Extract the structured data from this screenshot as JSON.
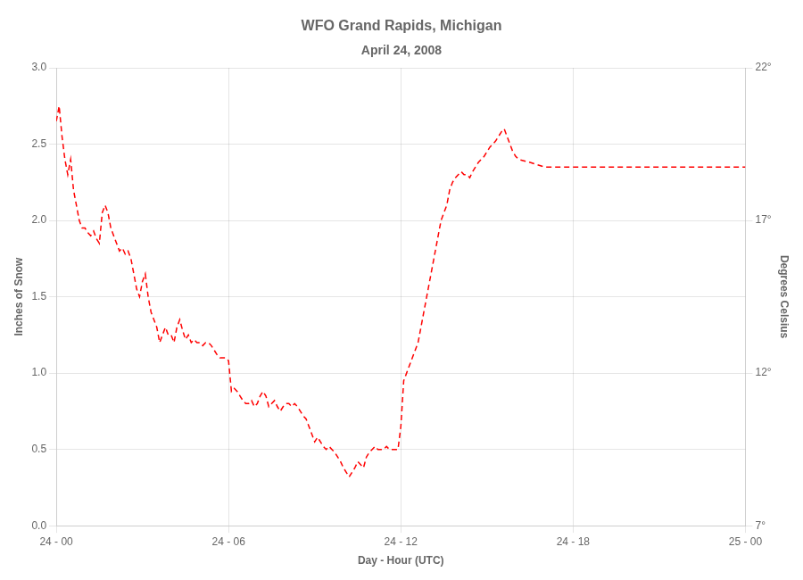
{
  "chart_data": {
    "type": "line",
    "title": "WFO Grand Rapids, Michigan",
    "subtitle": "April 24, 2008",
    "xlabel": "Day - Hour (UTC)",
    "ylabel": "Inches of Snow",
    "y2label": "Degrees Celsius",
    "grid": true,
    "color": "#FF0000",
    "line_style": "dashed",
    "xlim": [
      0,
      24
    ],
    "xticks": [
      {
        "value": 0,
        "label": "24 - 00"
      },
      {
        "value": 6,
        "label": "24 - 06"
      },
      {
        "value": 12,
        "label": "24 - 12"
      },
      {
        "value": 18,
        "label": "24 - 18"
      },
      {
        "value": 24,
        "label": "25 - 00"
      }
    ],
    "ylim": [
      0.0,
      3.0
    ],
    "yticks": [
      {
        "value": 0.0,
        "label": "0.0"
      },
      0.5,
      {
        "value": 1.0,
        "label": "1.0"
      },
      1.5,
      {
        "value": 2.0,
        "label": "2.0"
      },
      2.5,
      {
        "value": 3.0,
        "label": "3.0"
      }
    ],
    "y2lim": [
      7,
      22
    ],
    "y2ticks": [
      {
        "value": 7,
        "label": "7°"
      },
      {
        "value": 12,
        "label": "12°"
      },
      {
        "value": 17,
        "label": "17°"
      },
      {
        "value": 22,
        "label": "22°"
      }
    ],
    "x": [
      0.0,
      0.1,
      0.2,
      0.3,
      0.4,
      0.5,
      0.6,
      0.7,
      0.8,
      0.9,
      1.0,
      1.1,
      1.2,
      1.3,
      1.4,
      1.5,
      1.6,
      1.7,
      1.8,
      1.9,
      2.0,
      2.1,
      2.2,
      2.3,
      2.4,
      2.5,
      2.6,
      2.7,
      2.8,
      2.9,
      3.0,
      3.1,
      3.2,
      3.3,
      3.4,
      3.5,
      3.6,
      3.7,
      3.8,
      3.9,
      4.0,
      4.1,
      4.2,
      4.3,
      4.4,
      4.5,
      4.6,
      4.7,
      4.8,
      4.9,
      5.0,
      5.1,
      5.2,
      5.3,
      5.4,
      5.5,
      5.6,
      5.7,
      5.8,
      5.9,
      6.0,
      6.1,
      6.2,
      6.3,
      6.4,
      6.5,
      6.6,
      6.7,
      6.8,
      6.9,
      7.0,
      7.1,
      7.2,
      7.3,
      7.4,
      7.5,
      7.6,
      7.7,
      7.8,
      7.9,
      8.0,
      8.1,
      8.2,
      8.3,
      8.4,
      8.5,
      8.6,
      8.7,
      8.8,
      8.9,
      9.0,
      9.1,
      9.2,
      9.3,
      9.4,
      9.5,
      9.6,
      9.7,
      9.8,
      9.9,
      10.0,
      10.1,
      10.2,
      10.3,
      10.4,
      10.5,
      10.6,
      10.7,
      10.8,
      10.9,
      11.0,
      11.1,
      11.2,
      11.3,
      11.4,
      11.5,
      11.6,
      11.7,
      11.8,
      11.9,
      12.0,
      12.1,
      12.2,
      12.3,
      12.4,
      12.5,
      12.6,
      12.7,
      12.8,
      12.9,
      13.0,
      13.1,
      13.2,
      13.3,
      13.4,
      13.5,
      13.6,
      13.7,
      13.8,
      13.9,
      14.0,
      14.1,
      14.2,
      14.3,
      14.4,
      14.5,
      14.6,
      14.7,
      14.8,
      14.9,
      15.0,
      15.1,
      15.2,
      15.3,
      15.4,
      15.5,
      15.6,
      15.7,
      15.8,
      15.9,
      16.0,
      16.1,
      16.5,
      17.0,
      18.0,
      19.0,
      20.0,
      21.0,
      22.0,
      23.0,
      24.0
    ],
    "values": [
      2.65,
      2.75,
      2.55,
      2.4,
      2.3,
      2.4,
      2.2,
      2.1,
      2.0,
      1.95,
      1.95,
      1.92,
      1.9,
      1.93,
      1.88,
      1.85,
      2.05,
      2.1,
      2.05,
      1.95,
      1.9,
      1.85,
      1.8,
      1.82,
      1.78,
      1.8,
      1.75,
      1.65,
      1.55,
      1.5,
      1.6,
      1.65,
      1.5,
      1.4,
      1.35,
      1.3,
      1.2,
      1.25,
      1.3,
      1.25,
      1.25,
      1.2,
      1.3,
      1.35,
      1.28,
      1.22,
      1.25,
      1.2,
      1.22,
      1.2,
      1.2,
      1.18,
      1.2,
      1.2,
      1.18,
      1.15,
      1.12,
      1.1,
      1.1,
      1.1,
      1.08,
      0.88,
      0.9,
      0.88,
      0.85,
      0.82,
      0.8,
      0.8,
      0.82,
      0.78,
      0.8,
      0.85,
      0.88,
      0.85,
      0.78,
      0.8,
      0.82,
      0.78,
      0.75,
      0.78,
      0.8,
      0.8,
      0.78,
      0.8,
      0.78,
      0.75,
      0.72,
      0.7,
      0.65,
      0.6,
      0.55,
      0.58,
      0.55,
      0.52,
      0.5,
      0.52,
      0.5,
      0.48,
      0.45,
      0.42,
      0.38,
      0.35,
      0.32,
      0.35,
      0.38,
      0.42,
      0.4,
      0.38,
      0.45,
      0.48,
      0.5,
      0.52,
      0.5,
      0.5,
      0.5,
      0.52,
      0.5,
      0.5,
      0.5,
      0.5,
      0.65,
      0.95,
      1.0,
      1.05,
      1.1,
      1.15,
      1.2,
      1.3,
      1.4,
      1.5,
      1.6,
      1.7,
      1.8,
      1.9,
      2.0,
      2.05,
      2.1,
      2.2,
      2.25,
      2.28,
      2.3,
      2.32,
      2.3,
      2.3,
      2.28,
      2.32,
      2.35,
      2.38,
      2.4,
      2.42,
      2.45,
      2.48,
      2.5,
      2.52,
      2.55,
      2.58,
      2.6,
      2.55,
      2.5,
      2.45,
      2.42,
      2.4,
      2.38,
      2.35,
      2.35,
      2.35,
      2.35,
      2.35,
      2.35,
      2.35,
      2.35
    ]
  }
}
